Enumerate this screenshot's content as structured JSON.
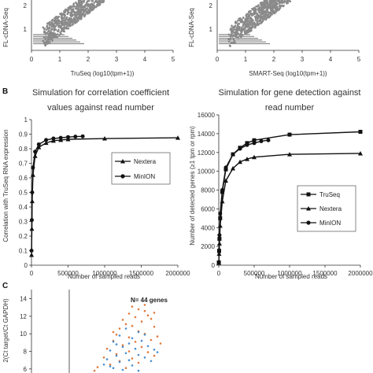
{
  "panels": {
    "B": "B",
    "C": "C"
  },
  "chart_data": [
    {
      "id": "A-left",
      "type": "scatter",
      "xlabel": "TruSeq (log10(tpm+1))",
      "ylabel": "FL-cDNA-Seq",
      "xlim": [
        0,
        5
      ],
      "xticks": [
        "0",
        "1",
        "2",
        "3",
        "4",
        "5"
      ],
      "yticks": [
        "1",
        "2"
      ],
      "color": "#8a8a8a"
    },
    {
      "id": "A-right",
      "type": "scatter",
      "xlabel": "SMART-Seq (log10(tpm+1))",
      "ylabel": "FL-cDNA-Seq",
      "xlim": [
        0,
        5
      ],
      "xticks": [
        "0",
        "1",
        "2",
        "3",
        "4",
        "5"
      ],
      "yticks": [
        "1",
        "2"
      ],
      "color": "#8a8a8a"
    },
    {
      "id": "B-left",
      "type": "line",
      "title": [
        "Simulation for correlation coefficient",
        "values against read number"
      ],
      "xlabel": "Number of sampled reads",
      "ylabel": "Correlation with TruSeq RNA expression",
      "xlim": [
        0,
        2000000
      ],
      "ylim": [
        0,
        1
      ],
      "xticks": [
        "0",
        "500000",
        "1000000",
        "1500000",
        "2000000"
      ],
      "yticks": [
        "0",
        "0.1",
        "0.2",
        "0.3",
        "0.4",
        "0.5",
        "0.6",
        "0.7",
        "0.8",
        "0.9",
        "1"
      ],
      "legend_position": "middle-right",
      "series": [
        {
          "name": "Nextera",
          "marker": "triangle",
          "x": [
            1000,
            5000,
            10000,
            20000,
            50000,
            100000,
            200000,
            300000,
            400000,
            500000,
            1000000,
            2000000
          ],
          "y": [
            0.07,
            0.25,
            0.44,
            0.62,
            0.75,
            0.81,
            0.84,
            0.855,
            0.86,
            0.865,
            0.87,
            0.875
          ]
        },
        {
          "name": "MinION",
          "marker": "circle",
          "x": [
            1000,
            5000,
            10000,
            20000,
            50000,
            100000,
            200000,
            300000,
            400000,
            500000,
            600000,
            700000
          ],
          "y": [
            0.1,
            0.31,
            0.5,
            0.67,
            0.78,
            0.83,
            0.86,
            0.87,
            0.875,
            0.88,
            0.883,
            0.885
          ]
        }
      ]
    },
    {
      "id": "B-right",
      "type": "line",
      "title": [
        "Simulation for gene detection against",
        "read number"
      ],
      "xlabel": "Number of sampled reads",
      "ylabel": "Number of detected genes (≥1 tpm or rpm)",
      "xlim": [
        0,
        2000000
      ],
      "ylim": [
        0,
        16000
      ],
      "xticks": [
        "0",
        "500000",
        "1000000",
        "1500000",
        "2000000"
      ],
      "yticks": [
        "0",
        "2000",
        "4000",
        "6000",
        "8000",
        "10000",
        "12000",
        "14000",
        "16000"
      ],
      "legend_position": "lower-right",
      "series": [
        {
          "name": "TruSeq",
          "marker": "square",
          "x": [
            1000,
            5000,
            10000,
            20000,
            50000,
            100000,
            200000,
            300000,
            400000,
            500000,
            1000000,
            2000000
          ],
          "y": [
            300,
            1500,
            2800,
            5000,
            7800,
            10200,
            11800,
            12500,
            13000,
            13300,
            13900,
            14200
          ]
        },
        {
          "name": "Nextera",
          "marker": "triangle",
          "x": [
            1000,
            5000,
            10000,
            20000,
            50000,
            100000,
            200000,
            300000,
            400000,
            500000,
            1000000,
            2000000
          ],
          "y": [
            250,
            1200,
            2300,
            4200,
            6800,
            9000,
            10300,
            11000,
            11300,
            11500,
            11800,
            11900
          ]
        },
        {
          "name": "MinION",
          "marker": "circle",
          "x": [
            1000,
            5000,
            10000,
            20000,
            50000,
            100000,
            200000,
            300000,
            400000,
            500000,
            600000,
            700000
          ],
          "y": [
            300,
            1600,
            3200,
            5500,
            8000,
            10400,
            11800,
            12400,
            12800,
            13000,
            13200,
            13300
          ]
        }
      ]
    },
    {
      "id": "C",
      "type": "scatter",
      "ylabel": "2(Ct target/Ct GAPDH)",
      "yticks": [
        "6",
        "8",
        "10",
        "12",
        "14"
      ],
      "ylim": [
        5,
        14.5
      ],
      "annotation": "N= 44 genes",
      "series": [
        {
          "color": "#e07a3c",
          "points": [
            [
              2.0,
              13.1
            ],
            [
              2.2,
              12.8
            ],
            [
              1.9,
              12.3
            ],
            [
              2.4,
              12.6
            ],
            [
              2.1,
              11.9
            ],
            [
              1.7,
              11.6
            ],
            [
              2.5,
              12.1
            ],
            [
              2.3,
              11.4
            ],
            [
              1.8,
              11.1
            ],
            [
              2.6,
              11.7
            ],
            [
              2.0,
              10.9
            ],
            [
              1.6,
              10.6
            ],
            [
              2.2,
              10.3
            ],
            [
              2.7,
              10.8
            ],
            [
              1.5,
              9.9
            ],
            [
              2.4,
              10.0
            ],
            [
              1.9,
              9.6
            ],
            [
              2.8,
              9.7
            ],
            [
              1.4,
              9.2
            ],
            [
              2.1,
              9.1
            ],
            [
              2.6,
              9.3
            ],
            [
              1.7,
              8.7
            ],
            [
              2.3,
              8.5
            ],
            [
              1.2,
              8.3
            ],
            [
              2.9,
              8.9
            ],
            [
              1.9,
              8.0
            ],
            [
              1.5,
              7.7
            ],
            [
              2.5,
              7.9
            ],
            [
              1.1,
              7.3
            ],
            [
              2.0,
              7.2
            ],
            [
              1.6,
              6.9
            ],
            [
              2.7,
              7.5
            ],
            [
              1.3,
              6.5
            ],
            [
              0.9,
              6.2
            ],
            [
              2.2,
              6.7
            ],
            [
              1.8,
              6.1
            ],
            [
              2.4,
              13.3
            ],
            [
              2.7,
              12.4
            ],
            [
              1.4,
              10.2
            ],
            [
              0.8,
              5.8
            ]
          ]
        },
        {
          "color": "#4a8fcf",
          "points": [
            [
              1.8,
              10.6
            ],
            [
              2.2,
              10.2
            ],
            [
              1.6,
              9.8
            ],
            [
              2.0,
              9.5
            ],
            [
              2.4,
              9.9
            ],
            [
              1.4,
              9.1
            ],
            [
              1.9,
              8.9
            ],
            [
              2.3,
              9.2
            ],
            [
              1.7,
              8.5
            ],
            [
              2.1,
              8.3
            ],
            [
              1.3,
              8.1
            ],
            [
              2.5,
              8.6
            ],
            [
              1.8,
              7.8
            ],
            [
              1.5,
              7.5
            ],
            [
              2.2,
              7.6
            ],
            [
              1.2,
              7.1
            ],
            [
              1.9,
              7.0
            ],
            [
              2.4,
              7.3
            ],
            [
              1.6,
              6.8
            ],
            [
              1.1,
              6.5
            ],
            [
              2.0,
              6.4
            ],
            [
              1.4,
              6.1
            ],
            [
              2.6,
              6.9
            ],
            [
              1.7,
              5.9
            ],
            [
              1.0,
              5.7
            ],
            [
              2.2,
              5.8
            ],
            [
              2.8,
              7.9
            ],
            [
              1.5,
              8.8
            ],
            [
              2.7,
              8.2
            ],
            [
              1.3,
              6.3
            ]
          ]
        }
      ]
    }
  ]
}
